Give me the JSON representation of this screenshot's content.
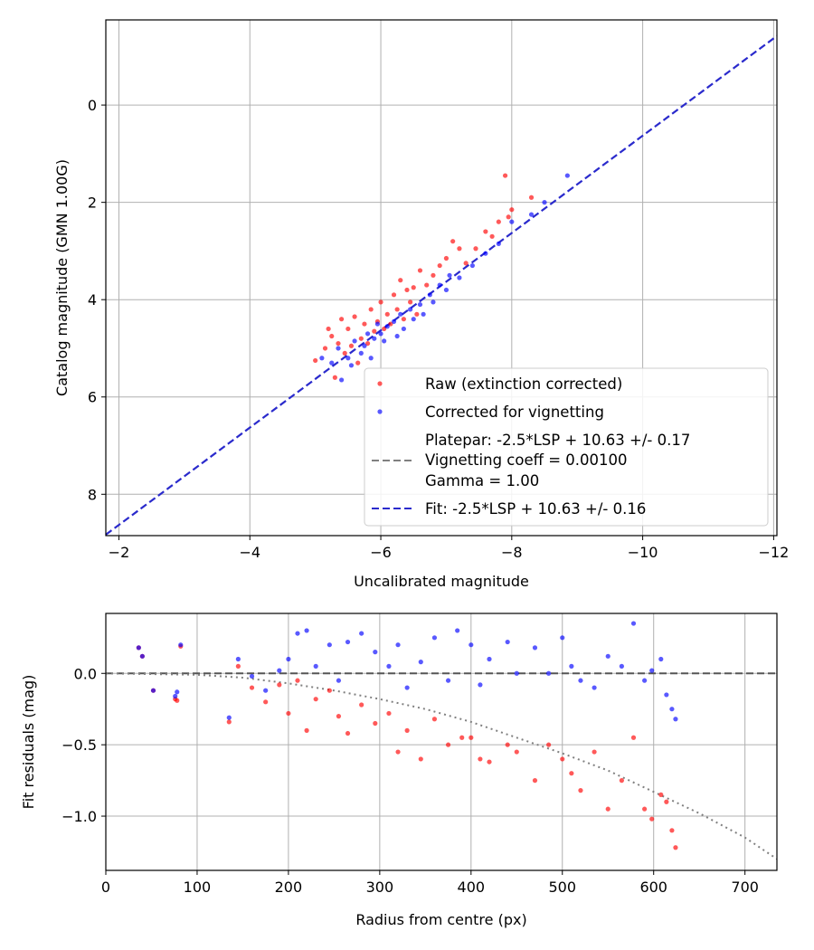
{
  "chart_data": [
    {
      "type": "scatter",
      "xlabel": "Uncalibrated magnitude",
      "ylabel": "Catalog magnitude (GMN 1.00G)",
      "xlim": [
        -1.8,
        -12.05
      ],
      "ylim": [
        8.85,
        -1.75
      ],
      "xticks": [
        -2,
        -4,
        -6,
        -8,
        -10,
        -12
      ],
      "xtick_labels": [
        "−2",
        "−4",
        "−6",
        "−8",
        "−10",
        "−12"
      ],
      "yticks": [
        0,
        2,
        4,
        6,
        8
      ],
      "ytick_labels": [
        "0",
        "2",
        "4",
        "6",
        "8"
      ],
      "grid": true,
      "legend_position": "lower-right",
      "legend": [
        {
          "label": "Raw (extinction corrected)",
          "kind": "marker",
          "color": "#ff0000"
        },
        {
          "label": "Corrected for vignetting",
          "kind": "marker",
          "color": "#0000ff"
        },
        {
          "label_lines": [
            "Platepar: -2.5*LSP + 10.63 +/- 0.17",
            "Vignetting coeff = 0.00100",
            "Gamma = 1.00"
          ],
          "kind": "dashed-line",
          "color": "#808080"
        },
        {
          "label": "Fit: -2.5*LSP + 10.63 +/- 0.16",
          "kind": "dashed-line",
          "color": "#2a2acc"
        }
      ],
      "fit_line": {
        "name": "Fit: -2.5*LSP + 10.63 +/- 0.16",
        "slope": 1.0,
        "intercept": 10.63,
        "color": "#2a2acc"
      },
      "series": [
        {
          "name": "Raw (extinction corrected)",
          "color": "#ff0000",
          "points": [
            [
              -5.0,
              5.25
            ],
            [
              -5.15,
              5.0
            ],
            [
              -5.2,
              4.6
            ],
            [
              -5.25,
              4.75
            ],
            [
              -5.3,
              5.6
            ],
            [
              -5.35,
              4.9
            ],
            [
              -5.4,
              4.4
            ],
            [
              -5.45,
              5.1
            ],
            [
              -5.5,
              4.6
            ],
            [
              -5.55,
              4.95
            ],
            [
              -5.6,
              4.35
            ],
            [
              -5.65,
              5.3
            ],
            [
              -5.7,
              4.8
            ],
            [
              -5.75,
              4.5
            ],
            [
              -5.8,
              4.9
            ],
            [
              -5.85,
              4.2
            ],
            [
              -5.9,
              4.65
            ],
            [
              -5.95,
              4.45
            ],
            [
              -6.0,
              4.05
            ],
            [
              -6.05,
              4.6
            ],
            [
              -6.1,
              4.3
            ],
            [
              -6.15,
              4.5
            ],
            [
              -6.2,
              3.9
            ],
            [
              -6.25,
              4.2
            ],
            [
              -6.3,
              3.6
            ],
            [
              -6.35,
              4.4
            ],
            [
              -6.4,
              3.8
            ],
            [
              -6.45,
              4.05
            ],
            [
              -6.5,
              3.75
            ],
            [
              -6.55,
              4.3
            ],
            [
              -6.6,
              3.4
            ],
            [
              -6.7,
              3.7
            ],
            [
              -6.8,
              3.5
            ],
            [
              -6.9,
              3.3
            ],
            [
              -7.0,
              3.15
            ],
            [
              -7.1,
              2.8
            ],
            [
              -7.2,
              2.95
            ],
            [
              -7.3,
              3.25
            ],
            [
              -7.45,
              2.95
            ],
            [
              -7.6,
              2.6
            ],
            [
              -7.7,
              2.7
            ],
            [
              -7.8,
              2.4
            ],
            [
              -7.95,
              2.3
            ],
            [
              -8.0,
              2.15
            ],
            [
              -8.3,
              1.9
            ],
            [
              -7.9,
              1.45
            ]
          ]
        },
        {
          "name": "Corrected for vignetting",
          "color": "#0000ff",
          "points": [
            [
              -5.1,
              5.2
            ],
            [
              -5.25,
              5.3
            ],
            [
              -5.35,
              5.0
            ],
            [
              -5.4,
              5.65
            ],
            [
              -5.5,
              5.2
            ],
            [
              -5.55,
              5.35
            ],
            [
              -5.6,
              4.85
            ],
            [
              -5.7,
              5.1
            ],
            [
              -5.75,
              4.95
            ],
            [
              -5.8,
              4.7
            ],
            [
              -5.85,
              5.2
            ],
            [
              -5.9,
              4.8
            ],
            [
              -5.95,
              4.5
            ],
            [
              -6.0,
              4.7
            ],
            [
              -6.05,
              4.85
            ],
            [
              -6.1,
              4.55
            ],
            [
              -6.2,
              4.45
            ],
            [
              -6.25,
              4.75
            ],
            [
              -6.3,
              4.3
            ],
            [
              -6.35,
              4.6
            ],
            [
              -6.45,
              4.2
            ],
            [
              -6.5,
              4.4
            ],
            [
              -6.6,
              4.1
            ],
            [
              -6.65,
              4.3
            ],
            [
              -6.75,
              3.9
            ],
            [
              -6.8,
              4.05
            ],
            [
              -6.9,
              3.7
            ],
            [
              -7.0,
              3.8
            ],
            [
              -7.05,
              3.5
            ],
            [
              -7.2,
              3.55
            ],
            [
              -7.4,
              3.3
            ],
            [
              -7.6,
              3.05
            ],
            [
              -7.8,
              2.85
            ],
            [
              -8.0,
              2.4
            ],
            [
              -8.3,
              2.25
            ],
            [
              -8.5,
              2.0
            ],
            [
              -8.85,
              1.45
            ]
          ]
        }
      ]
    },
    {
      "type": "scatter",
      "xlabel": "Radius from centre (px)",
      "ylabel": "Fit residuals (mag)",
      "xlim": [
        0,
        735
      ],
      "ylim": [
        -1.38,
        0.42
      ],
      "xticks": [
        0,
        100,
        200,
        300,
        400,
        500,
        600,
        700
      ],
      "xtick_labels": [
        "0",
        "100",
        "200",
        "300",
        "400",
        "500",
        "600",
        "700"
      ],
      "yticks": [
        0.0,
        -0.5,
        -1.0
      ],
      "ytick_labels": [
        "0.0",
        "−0.5",
        "−1.0"
      ],
      "grid": true,
      "zero_line": {
        "y": 0,
        "style": "dashed",
        "color": "#555555"
      },
      "model_curve": {
        "name": "Vignetting model",
        "style": "dotted",
        "color": "#808080",
        "points": [
          [
            0,
            0
          ],
          [
            100,
            -0.01
          ],
          [
            150,
            -0.03
          ],
          [
            200,
            -0.07
          ],
          [
            250,
            -0.12
          ],
          [
            300,
            -0.18
          ],
          [
            350,
            -0.25
          ],
          [
            400,
            -0.34
          ],
          [
            450,
            -0.45
          ],
          [
            500,
            -0.56
          ],
          [
            550,
            -0.68
          ],
          [
            600,
            -0.83
          ],
          [
            650,
            -0.98
          ],
          [
            700,
            -1.15
          ],
          [
            735,
            -1.3
          ]
        ]
      },
      "series": [
        {
          "name": "Raw (extinction corrected)",
          "color": "#ff0000",
          "points": [
            [
              36,
              0.18
            ],
            [
              40,
              0.12
            ],
            [
              52,
              -0.12
            ],
            [
              76,
              -0.18
            ],
            [
              78,
              -0.19
            ],
            [
              82,
              0.19
            ],
            [
              135,
              -0.34
            ],
            [
              145,
              0.05
            ],
            [
              160,
              -0.1
            ],
            [
              175,
              -0.2
            ],
            [
              190,
              -0.08
            ],
            [
              200,
              -0.28
            ],
            [
              210,
              -0.05
            ],
            [
              220,
              -0.4
            ],
            [
              230,
              -0.18
            ],
            [
              245,
              -0.12
            ],
            [
              255,
              -0.3
            ],
            [
              265,
              -0.42
            ],
            [
              280,
              -0.22
            ],
            [
              295,
              -0.35
            ],
            [
              310,
              -0.28
            ],
            [
              320,
              -0.55
            ],
            [
              330,
              -0.4
            ],
            [
              345,
              -0.6
            ],
            [
              360,
              -0.32
            ],
            [
              375,
              -0.5
            ],
            [
              390,
              -0.45
            ],
            [
              400,
              -0.45
            ],
            [
              410,
              -0.6
            ],
            [
              420,
              -0.62
            ],
            [
              440,
              -0.5
            ],
            [
              450,
              -0.55
            ],
            [
              470,
              -0.75
            ],
            [
              485,
              -0.5
            ],
            [
              500,
              -0.6
            ],
            [
              510,
              -0.7
            ],
            [
              520,
              -0.82
            ],
            [
              535,
              -0.55
            ],
            [
              550,
              -0.95
            ],
            [
              565,
              -0.75
            ],
            [
              578,
              -0.45
            ],
            [
              590,
              -0.95
            ],
            [
              598,
              -1.02
            ],
            [
              608,
              -0.85
            ],
            [
              614,
              -0.9
            ],
            [
              620,
              -1.1
            ],
            [
              624,
              -1.22
            ]
          ]
        },
        {
          "name": "Corrected for vignetting",
          "color": "#0000ff",
          "points": [
            [
              36,
              0.18
            ],
            [
              40,
              0.12
            ],
            [
              52,
              -0.12
            ],
            [
              76,
              -0.16
            ],
            [
              78,
              -0.13
            ],
            [
              82,
              0.2
            ],
            [
              135,
              -0.31
            ],
            [
              145,
              0.1
            ],
            [
              160,
              -0.02
            ],
            [
              175,
              -0.12
            ],
            [
              190,
              0.02
            ],
            [
              200,
              0.1
            ],
            [
              210,
              0.28
            ],
            [
              220,
              0.3
            ],
            [
              230,
              0.05
            ],
            [
              245,
              0.2
            ],
            [
              255,
              -0.05
            ],
            [
              265,
              0.22
            ],
            [
              280,
              0.28
            ],
            [
              295,
              0.15
            ],
            [
              310,
              0.05
            ],
            [
              320,
              0.2
            ],
            [
              330,
              -0.1
            ],
            [
              345,
              0.08
            ],
            [
              360,
              0.25
            ],
            [
              375,
              -0.05
            ],
            [
              385,
              0.3
            ],
            [
              400,
              0.2
            ],
            [
              410,
              -0.08
            ],
            [
              420,
              0.1
            ],
            [
              440,
              0.22
            ],
            [
              450,
              0.0
            ],
            [
              470,
              0.18
            ],
            [
              485,
              0.0
            ],
            [
              500,
              0.25
            ],
            [
              510,
              0.05
            ],
            [
              520,
              -0.05
            ],
            [
              535,
              -0.1
            ],
            [
              550,
              0.12
            ],
            [
              565,
              0.05
            ],
            [
              578,
              0.35
            ],
            [
              590,
              -0.05
            ],
            [
              598,
              0.02
            ],
            [
              608,
              0.1
            ],
            [
              614,
              -0.15
            ],
            [
              620,
              -0.25
            ],
            [
              624,
              -0.32
            ]
          ]
        }
      ]
    }
  ]
}
